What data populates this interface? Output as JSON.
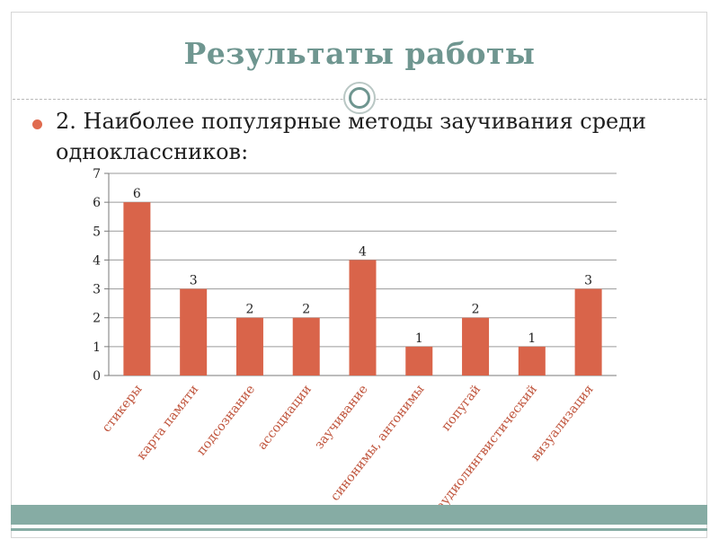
{
  "slide": {
    "title": "Результаты работы",
    "bullet_text": "2. Наиболее популярные методы заучивания среди одноклассников:"
  },
  "colors": {
    "title": "#6f9690",
    "bar": "#d9644a",
    "accent_band": "#86aca4",
    "bullet": "#e06b4f"
  },
  "chart_data": {
    "type": "bar",
    "title": "",
    "xlabel": "",
    "ylabel": "",
    "ylim": [
      0,
      7
    ],
    "yticks": [
      "0",
      "1",
      "2",
      "3",
      "4",
      "5",
      "6",
      "7"
    ],
    "grid": true,
    "categories": [
      "стикеры",
      "карта памяти",
      "подсознание",
      "ассоциации",
      "заучивание",
      "синонимы, антонимы",
      "попугай",
      "аудиолингвистический",
      "визуализация"
    ],
    "values": [
      6,
      3,
      2,
      2,
      4,
      1,
      2,
      1,
      3
    ],
    "data_labels": [
      "6",
      "3",
      "2",
      "2",
      "4",
      "1",
      "2",
      "1",
      "3"
    ]
  }
}
